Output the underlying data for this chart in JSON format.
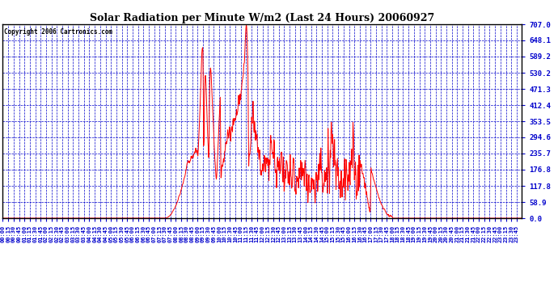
{
  "title": "Solar Radiation per Minute W/m2 (Last 24 Hours) 20060927",
  "copyright_text": "Copyright 2006 Cartronics.com",
  "line_color": "#ff0000",
  "bg_color": "#ffffff",
  "plot_bg_color": "#ffffff",
  "grid_color": "#0000cc",
  "axis_label_color": "#0000cc",
  "border_color": "#000000",
  "title_color": "#000000",
  "ylim": [
    0.0,
    707.0
  ],
  "yticks": [
    0.0,
    58.9,
    117.8,
    176.8,
    235.7,
    294.6,
    353.5,
    412.4,
    471.3,
    530.2,
    589.2,
    648.1,
    707.0
  ],
  "n_points": 1440
}
